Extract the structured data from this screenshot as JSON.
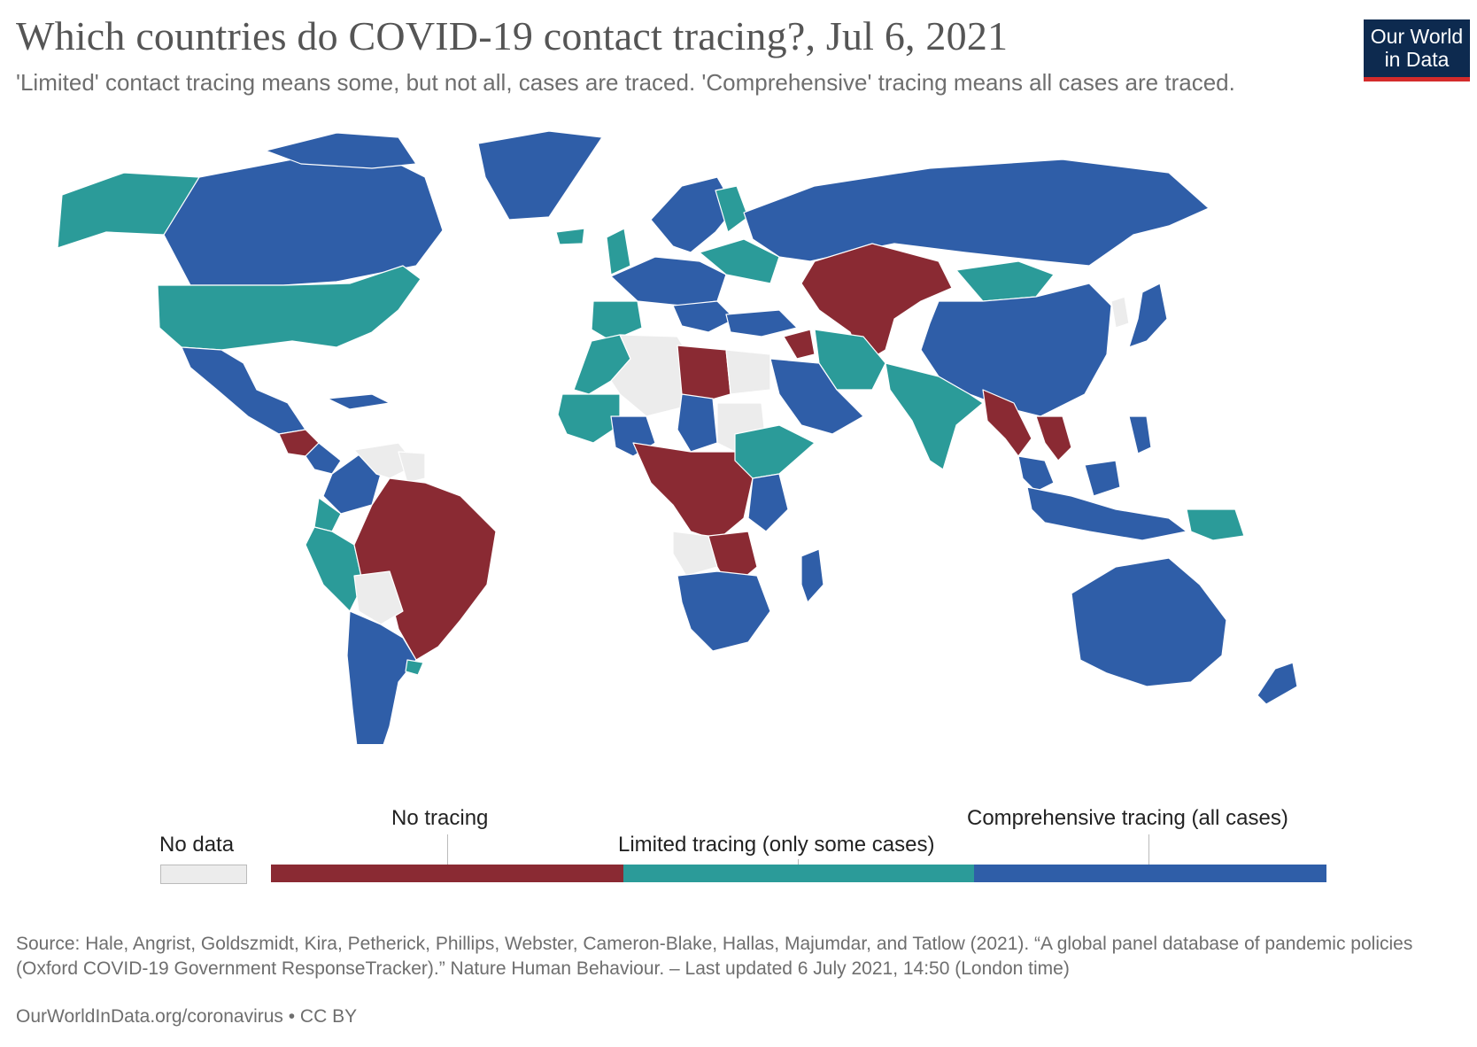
{
  "title": "Which countries do COVID-19 contact tracing?, Jul 6, 2021",
  "subtitle": "'Limited' contact tracing means some, but not all, cases are traced. 'Comprehensive' tracing means all cases are traced.",
  "logo": {
    "line1": "Our World",
    "line2": "in Data",
    "bg": "#0d2a4f",
    "accent": "#d42b2b"
  },
  "legend": {
    "no_data_label": "No data",
    "categories": [
      {
        "label": "No tracing",
        "color": "#8a2a33"
      },
      {
        "label": "Limited tracing (only some cases)",
        "color": "#2b9b99"
      },
      {
        "label": "Comprehensive tracing (all cases)",
        "color": "#2f5ea8"
      }
    ],
    "no_data_color": "#ececec"
  },
  "colors": {
    "none": "#8a2a33",
    "limited": "#2b9b99",
    "comprehensive": "#2f5ea8",
    "nodata": "#ececec",
    "border": "#ffffff"
  },
  "source": "Source: Hale, Angrist, Goldszmidt, Kira, Petherick, Phillips, Webster, Cameron-Blake, Hallas, Majumdar, and Tatlow (2021). “A global panel database of pandemic policies (Oxford COVID-19 Government ResponseTracker).” Nature Human Behaviour. – Last updated 6 July 2021, 14:50 (London time)",
  "source_url": "OurWorldInData.org/coronavirus • CC BY"
}
